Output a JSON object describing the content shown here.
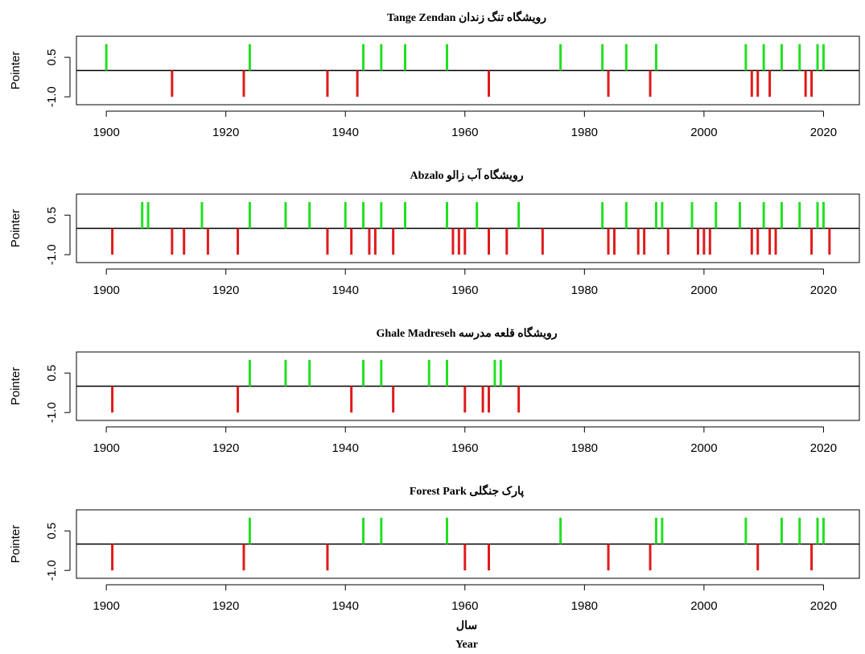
{
  "chart_data": [
    {
      "type": "spike",
      "title": "رویشگاه تنگ زندان  Tange Zendan",
      "ylabel": "Pointer",
      "x": [
        1900,
        1924,
        1943,
        1946,
        1950,
        1957,
        1976,
        1983,
        1987,
        1992,
        2007,
        2010,
        2013,
        2016,
        2019,
        2020,
        1911,
        1923,
        1937,
        1942,
        1964,
        1984,
        1991,
        2008,
        2009,
        2011,
        2017,
        2018
      ],
      "values": [
        1,
        1,
        1,
        1,
        1,
        1,
        1,
        1,
        1,
        1,
        1,
        1,
        1,
        1,
        1,
        1,
        -1,
        -1,
        -1,
        -1,
        -1,
        -1,
        -1,
        -1,
        -1,
        -1,
        -1,
        -1
      ],
      "pos_color": "#22e022",
      "neg_color": "#e01a1a",
      "xlim": [
        1895,
        2026
      ],
      "ylim": [
        -1.3,
        1.3
      ],
      "xticks": [
        1900,
        1920,
        1940,
        1960,
        1980,
        2000,
        2020
      ],
      "yticks": [
        {
          "value": -1,
          "label": "-1.0"
        },
        0.5
      ]
    },
    {
      "type": "spike",
      "title": "رویشگاه آب زالو  Abzalo",
      "ylabel": "Pointer",
      "x": [
        1906,
        1907,
        1916,
        1924,
        1930,
        1934,
        1940,
        1943,
        1946,
        1950,
        1957,
        1962,
        1969,
        1983,
        1987,
        1992,
        1993,
        1998,
        2002,
        2006,
        2010,
        2013,
        2016,
        2019,
        2020,
        1901,
        1911,
        1913,
        1917,
        1922,
        1937,
        1941,
        1944,
        1945,
        1948,
        1958,
        1959,
        1960,
        1964,
        1967,
        1973,
        1984,
        1985,
        1989,
        1990,
        1994,
        1999,
        2000,
        2001,
        2008,
        2009,
        2011,
        2012,
        2018,
        2021
      ],
      "values": [
        1,
        1,
        1,
        1,
        1,
        1,
        1,
        1,
        1,
        1,
        1,
        1,
        1,
        1,
        1,
        1,
        1,
        1,
        1,
        1,
        1,
        1,
        1,
        1,
        1,
        -1,
        -1,
        -1,
        -1,
        -1,
        -1,
        -1,
        -1,
        -1,
        -1,
        -1,
        -1,
        -1,
        -1,
        -1,
        -1,
        -1,
        -1,
        -1,
        -1,
        -1,
        -1,
        -1,
        -1,
        -1,
        -1,
        -1,
        -1,
        -1,
        -1
      ],
      "pos_color": "#22e022",
      "neg_color": "#e01a1a",
      "xlim": [
        1895,
        2026
      ],
      "ylim": [
        -1.3,
        1.3
      ],
      "xticks": [
        1900,
        1920,
        1940,
        1960,
        1980,
        2000,
        2020
      ],
      "yticks": [
        {
          "value": -1,
          "label": "-1.0"
        },
        0.5
      ]
    },
    {
      "type": "spike",
      "title": "رویشگاه قلعه مدرسه  Ghale Madreseh",
      "ylabel": "Pointer",
      "x": [
        1924,
        1930,
        1934,
        1943,
        1946,
        1954,
        1957,
        1965,
        1966,
        1901,
        1922,
        1941,
        1948,
        1960,
        1963,
        1964,
        1969
      ],
      "values": [
        1,
        1,
        1,
        1,
        1,
        1,
        1,
        1,
        1,
        -1,
        -1,
        -1,
        -1,
        -1,
        -1,
        -1,
        -1
      ],
      "pos_color": "#22e022",
      "neg_color": "#e01a1a",
      "xlim": [
        1895,
        2026
      ],
      "ylim": [
        -1.3,
        1.3
      ],
      "xticks": [
        1900,
        1920,
        1940,
        1960,
        1980,
        2000,
        2020
      ],
      "yticks": [
        {
          "value": -1,
          "label": "-1.0"
        },
        0.5
      ]
    },
    {
      "type": "spike",
      "title": "پارک جنگلی  Forest Park",
      "ylabel": "Pointer",
      "xlabel": "سال",
      "xlabel2": "Year",
      "x": [
        1924,
        1943,
        1946,
        1957,
        1976,
        1992,
        1993,
        2007,
        2013,
        2016,
        2019,
        2020,
        1901,
        1923,
        1937,
        1960,
        1964,
        1984,
        1991,
        2009,
        2018
      ],
      "values": [
        1,
        1,
        1,
        1,
        1,
        1,
        1,
        1,
        1,
        1,
        1,
        1,
        -1,
        -1,
        -1,
        -1,
        -1,
        -1,
        -1,
        -1,
        -1
      ],
      "pos_color": "#22e022",
      "neg_color": "#e01a1a",
      "xlim": [
        1895,
        2026
      ],
      "ylim": [
        -1.3,
        1.3
      ],
      "xticks": [
        1900,
        1920,
        1940,
        1960,
        1980,
        2000,
        2020
      ],
      "yticks": [
        {
          "value": -1,
          "label": "-1.0"
        },
        0.5
      ]
    }
  ]
}
